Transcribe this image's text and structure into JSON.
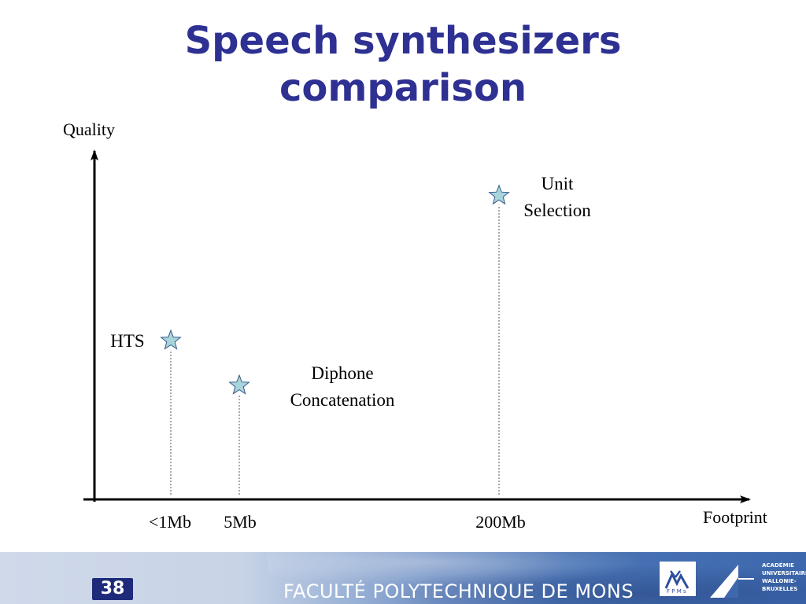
{
  "title": {
    "line1": "Speech synthesizers",
    "line2": "comparison"
  },
  "chart_data": {
    "type": "scatter",
    "title": "Speech synthesizers comparison",
    "xlabel": "Footprint",
    "ylabel": "Quality",
    "grid": false,
    "legend": "none",
    "marker": "star",
    "marker_color": "#a8d5dc",
    "x_scale": "ordinal (unlabeled magnitude)",
    "x_ticks": [
      "<1Mb",
      "5Mb",
      "200Mb"
    ],
    "points": [
      {
        "name": "HTS",
        "label_lines": [
          "HTS"
        ],
        "x": "<1Mb",
        "quality_relative": 0.46
      },
      {
        "name": "Diphone Concatenation",
        "label_lines": [
          "Diphone",
          "Concatenation"
        ],
        "x": "5Mb",
        "quality_relative": 0.33
      },
      {
        "name": "Unit Selection",
        "label_lines": [
          "Unit",
          "Selection"
        ],
        "x": "200Mb",
        "quality_relative": 0.88
      }
    ]
  },
  "footer": {
    "slide_number": "38",
    "faculty": "FACULTÉ POLYTECHNIQUE DE MONS",
    "academy_lines": [
      "ACADÉMIE",
      "UNIVERSITAIRE",
      "WALLONIE-",
      "BRUXELLES"
    ]
  }
}
